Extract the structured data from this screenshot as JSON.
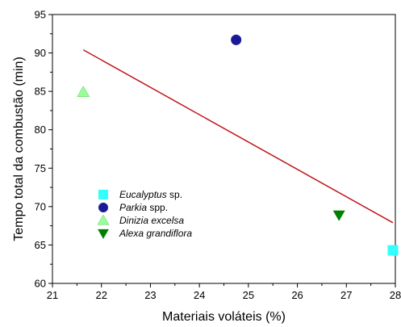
{
  "chart_data": {
    "type": "scatter",
    "xlabel": "Materiais voláteis (%)",
    "ylabel": "Tempo total da combustão (min)",
    "xlim": [
      21,
      28
    ],
    "ylim": [
      60,
      95
    ],
    "xticks": [
      "21",
      "22",
      "23",
      "24",
      "25",
      "26",
      "27",
      "28"
    ],
    "yticks": [
      "60",
      "65",
      "70",
      "75",
      "80",
      "85",
      "90",
      "95"
    ],
    "legend_position": "left-center",
    "series": [
      {
        "name": "Eucalyptus",
        "name_suffix": " sp.",
        "marker": "square",
        "color": "#33ffff",
        "x": 27.95,
        "y": 64.3
      },
      {
        "name": "Parkia",
        "name_suffix": " spp.",
        "marker": "circle",
        "color": "#1a1a99",
        "x": 24.75,
        "y": 91.7
      },
      {
        "name": "Dinizia excelsa",
        "name_suffix": "",
        "marker": "triangle-up",
        "color": "#99ff99",
        "x": 21.63,
        "y": 84.9
      },
      {
        "name": "Alexa grandiflora",
        "name_suffix": "",
        "marker": "triangle-down",
        "color": "#008000",
        "x": 26.85,
        "y": 68.9
      }
    ],
    "trendline": {
      "color": "#c0161b",
      "x": [
        21.63,
        27.95
      ],
      "y": [
        90.4,
        67.9
      ]
    }
  }
}
